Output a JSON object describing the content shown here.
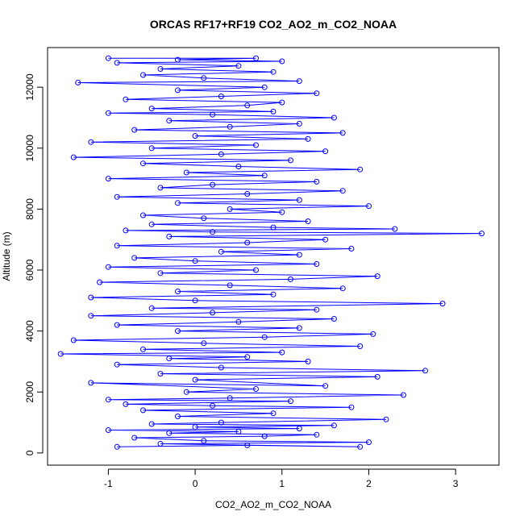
{
  "chart_data": {
    "type": "scatter",
    "title": "ORCAS RF17+RF19 CO2_AO2_m_CO2_NOAA",
    "xlabel": "CO2_AO2_m_CO2_NOAA",
    "ylabel": "Altitude (m)",
    "xlim": [
      -1.7,
      3.5
    ],
    "ylim": [
      -400,
      13300
    ],
    "x_ticks": [
      -1,
      0,
      1,
      2,
      3
    ],
    "x_tick_labels": [
      "-1",
      "0",
      "1",
      "2",
      "3"
    ],
    "y_ticks": [
      0,
      2000,
      4000,
      6000,
      8000,
      10000,
      12000
    ],
    "y_tick_labels": [
      "0",
      "2000",
      "4000",
      "6000",
      "8000",
      "10000",
      "12000"
    ],
    "grid": false,
    "legend": "none",
    "marker": "open-circle",
    "connected_by_lines": true,
    "color": "#0000ff",
    "series": [
      {
        "points": [
          [
            -0.9,
            200
          ],
          [
            0.6,
            250
          ],
          [
            1.9,
            200
          ],
          [
            -0.4,
            300
          ],
          [
            2.0,
            350
          ],
          [
            0.1,
            400
          ],
          [
            -0.7,
            500
          ],
          [
            0.8,
            550
          ],
          [
            1.4,
            600
          ],
          [
            -0.3,
            650
          ],
          [
            0.5,
            700
          ],
          [
            -1.0,
            750
          ],
          [
            1.2,
            800
          ],
          [
            0.0,
            850
          ],
          [
            1.6,
            900
          ],
          [
            -0.5,
            950
          ],
          [
            0.3,
            1000
          ],
          [
            2.2,
            1100
          ],
          [
            -0.2,
            1200
          ],
          [
            0.9,
            1300
          ],
          [
            -0.6,
            1400
          ],
          [
            1.8,
            1500
          ],
          [
            0.2,
            1550
          ],
          [
            -0.8,
            1600
          ],
          [
            1.1,
            1700
          ],
          [
            -1.0,
            1750
          ],
          [
            0.4,
            1800
          ],
          [
            2.4,
            1900
          ],
          [
            -0.1,
            2000
          ],
          [
            0.7,
            2100
          ],
          [
            -1.2,
            2300
          ],
          [
            1.5,
            2200
          ],
          [
            0.0,
            2400
          ],
          [
            2.1,
            2500
          ],
          [
            -0.4,
            2600
          ],
          [
            2.65,
            2700
          ],
          [
            0.3,
            2800
          ],
          [
            -0.9,
            2900
          ],
          [
            1.3,
            3000
          ],
          [
            -0.3,
            3100
          ],
          [
            0.6,
            3150
          ],
          [
            -1.55,
            3250
          ],
          [
            1.0,
            3300
          ],
          [
            -0.6,
            3400
          ],
          [
            1.9,
            3500
          ],
          [
            0.1,
            3600
          ],
          [
            -1.4,
            3700
          ],
          [
            0.8,
            3800
          ],
          [
            2.05,
            3900
          ],
          [
            -0.2,
            4000
          ],
          [
            1.2,
            4100
          ],
          [
            -0.9,
            4200
          ],
          [
            0.5,
            4300
          ],
          [
            1.6,
            4400
          ],
          [
            -1.2,
            4500
          ],
          [
            0.2,
            4600
          ],
          [
            1.4,
            4700
          ],
          [
            -0.5,
            4750
          ],
          [
            2.85,
            4900
          ],
          [
            0.0,
            5000
          ],
          [
            -1.2,
            5100
          ],
          [
            0.9,
            5200
          ],
          [
            -0.2,
            5300
          ],
          [
            1.7,
            5400
          ],
          [
            0.4,
            5500
          ],
          [
            -1.1,
            5600
          ],
          [
            1.1,
            5700
          ],
          [
            2.1,
            5800
          ],
          [
            -0.4,
            5900
          ],
          [
            0.7,
            6000
          ],
          [
            -1.0,
            6100
          ],
          [
            1.4,
            6200
          ],
          [
            0.0,
            6300
          ],
          [
            -0.7,
            6400
          ],
          [
            1.2,
            6500
          ],
          [
            0.3,
            6600
          ],
          [
            1.8,
            6700
          ],
          [
            -0.9,
            6800
          ],
          [
            0.6,
            6900
          ],
          [
            1.5,
            7000
          ],
          [
            -0.3,
            7100
          ],
          [
            3.3,
            7200
          ],
          [
            0.2,
            7250
          ],
          [
            -0.8,
            7300
          ],
          [
            2.3,
            7350
          ],
          [
            0.9,
            7400
          ],
          [
            -0.5,
            7500
          ],
          [
            1.3,
            7600
          ],
          [
            0.1,
            7700
          ],
          [
            -0.6,
            7800
          ],
          [
            1.0,
            7900
          ],
          [
            0.4,
            8000
          ],
          [
            2.0,
            8100
          ],
          [
            -0.2,
            8200
          ],
          [
            1.2,
            8300
          ],
          [
            -0.9,
            8400
          ],
          [
            0.6,
            8500
          ],
          [
            1.7,
            8600
          ],
          [
            -0.4,
            8700
          ],
          [
            0.2,
            8800
          ],
          [
            1.4,
            8900
          ],
          [
            -1.0,
            9000
          ],
          [
            0.8,
            9100
          ],
          [
            -0.1,
            9200
          ],
          [
            1.9,
            9300
          ],
          [
            0.5,
            9400
          ],
          [
            -0.6,
            9500
          ],
          [
            1.1,
            9600
          ],
          [
            -1.4,
            9700
          ],
          [
            0.3,
            9800
          ],
          [
            1.5,
            9900
          ],
          [
            -0.5,
            10000
          ],
          [
            0.7,
            10100
          ],
          [
            -1.2,
            10200
          ],
          [
            1.3,
            10300
          ],
          [
            0.0,
            10400
          ],
          [
            1.7,
            10500
          ],
          [
            -0.7,
            10600
          ],
          [
            0.4,
            10700
          ],
          [
            1.2,
            10800
          ],
          [
            -0.3,
            10900
          ],
          [
            1.6,
            11000
          ],
          [
            0.2,
            11100
          ],
          [
            -1.0,
            11150
          ],
          [
            0.9,
            11200
          ],
          [
            -0.5,
            11300
          ],
          [
            0.6,
            11400
          ],
          [
            1.0,
            11500
          ],
          [
            -0.8,
            11600
          ],
          [
            0.3,
            11700
          ],
          [
            1.4,
            11800
          ],
          [
            -0.2,
            11900
          ],
          [
            0.8,
            12000
          ],
          [
            -1.35,
            12150
          ],
          [
            1.2,
            12200
          ],
          [
            0.1,
            12300
          ],
          [
            -0.6,
            12400
          ],
          [
            0.9,
            12500
          ],
          [
            -0.4,
            12600
          ],
          [
            0.5,
            12700
          ],
          [
            -0.9,
            12800
          ],
          [
            1.0,
            12850
          ],
          [
            -0.2,
            12900
          ],
          [
            0.7,
            12950
          ],
          [
            -1.0,
            12950
          ]
        ]
      }
    ]
  }
}
